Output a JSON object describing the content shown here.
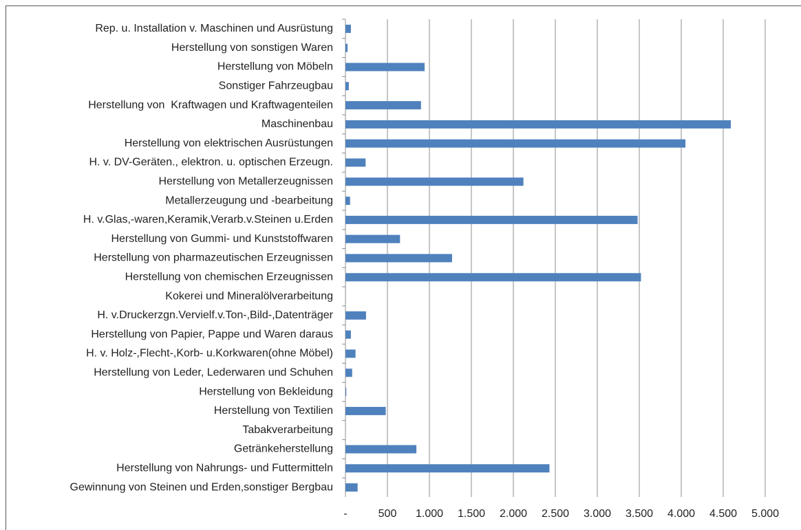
{
  "chart_data": {
    "type": "hbar",
    "categories": [
      "Rep. u. Installation v. Maschinen und Ausrüstung",
      "Herstellung von sonstigen Waren",
      "Herstellung von Möbeln",
      "Sonstiger Fahrzeugbau",
      "Herstellung von  Kraftwagen und Kraftwagenteilen",
      "Maschinenbau",
      "Herstellung von elektrischen Ausrüstungen",
      "H. v. DV-Geräten., elektron. u. optischen Erzeugn.",
      "Herstellung von Metallerzeugnissen",
      "Metallerzeugung und -bearbeitung",
      "H. v.Glas,-waren,Keramik,Verarb.v.Steinen u.Erden",
      "Herstellung von Gummi- und Kunststoffwaren",
      "Herstellung von pharmazeutischen Erzeugnissen",
      "Herstellung von chemischen Erzeugnissen",
      "Kokerei und Mineralölverarbeitung",
      "H. v.Druckerzgn.Vervielf.v.Ton-,Bild-,Datenträger",
      "Herstellung von Papier, Pappe und Waren daraus",
      "H. v. Holz-,Flecht-,Korb- u.Korkwaren(ohne Möbel)",
      "Herstellung von Leder, Lederwaren und Schuhen",
      "Herstellung von Bekleidung",
      "Herstellung von Textilien",
      "Tabakverarbeitung",
      "Getränkeherstellung",
      "Herstellung von Nahrungs- und Futtermitteln",
      "Gewinnung von Steinen und Erden,sonstiger Bergbau"
    ],
    "values": [
      65,
      25,
      943,
      40,
      900,
      4590,
      4050,
      240,
      2120,
      55,
      3480,
      650,
      1270,
      3520,
      0,
      245,
      65,
      120,
      80,
      10,
      480,
      0,
      845,
      2430,
      145
    ],
    "color": "#4f81bd",
    "xlim": [
      0,
      5000
    ],
    "xticks": [
      {
        "value": 0,
        "label": "-"
      },
      500,
      {
        "value": 1000,
        "label": "1.000"
      },
      {
        "value": 1500,
        "label": "1.500"
      },
      {
        "value": 2000,
        "label": "2.000"
      },
      {
        "value": 2500,
        "label": "2.500"
      },
      {
        "value": 3000,
        "label": "3.000"
      },
      {
        "value": 3500,
        "label": "3.500"
      },
      {
        "value": 4000,
        "label": "4.000"
      },
      {
        "value": 4500,
        "label": "4.500"
      },
      {
        "value": 5000,
        "label": "5.000"
      }
    ],
    "grid": true
  }
}
